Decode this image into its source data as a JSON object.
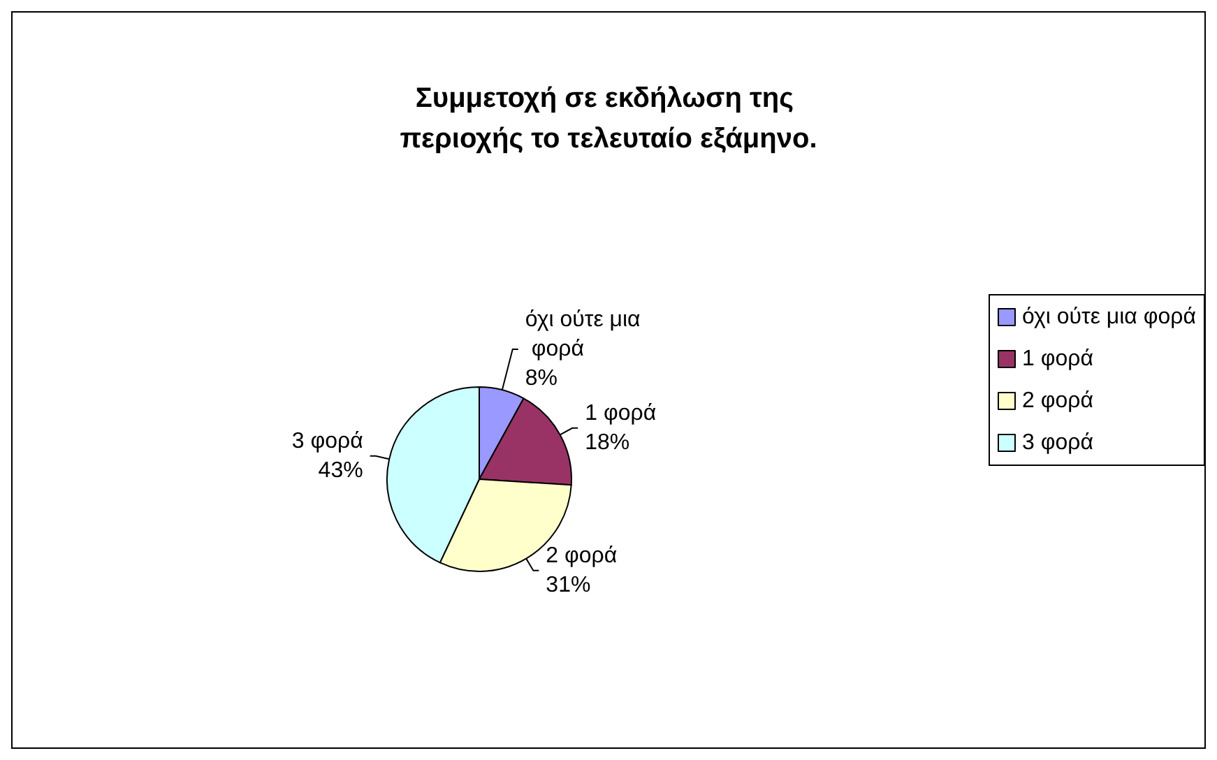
{
  "chart_data": {
    "type": "pie",
    "title": "Συμμετοχή σε εκδήλωση της περιοχής το τελευταίο εξάμηνο.",
    "categories": [
      "όχι ούτε μια φορά",
      "1 φορά",
      "2 φορά",
      "3 φορά"
    ],
    "values": [
      8,
      18,
      31,
      43
    ],
    "colors": [
      "#9999ff",
      "#993366",
      "#ffffcc",
      "#ccffff"
    ],
    "value_labels": [
      "8%",
      "18%",
      "31%",
      "43%"
    ],
    "legend": "right"
  }
}
